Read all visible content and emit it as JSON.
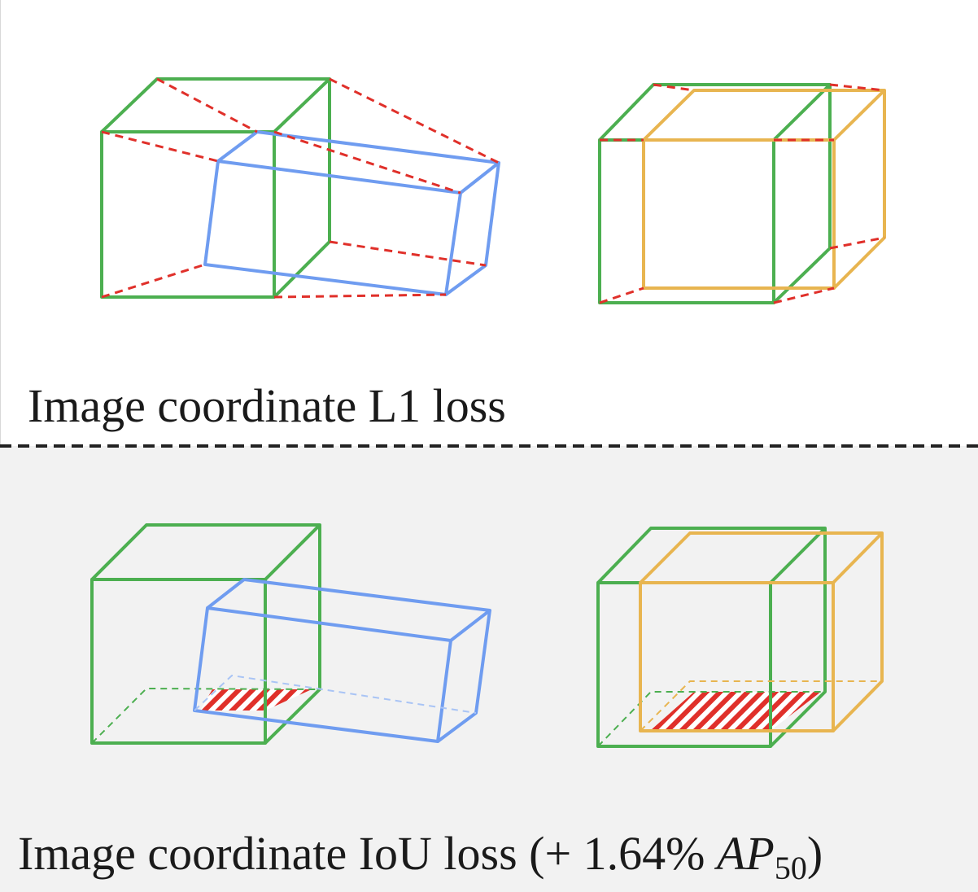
{
  "top_caption": "Image coordinate L1 loss",
  "bottom_caption_main": "Image coordinate IoU loss (+ 1.64% ",
  "bottom_caption_metric": "AP",
  "bottom_caption_subscript": "50",
  "bottom_caption_close": ")",
  "colors": {
    "ground_truth_box": "#4caf50",
    "prediction_box_rotated": "#6f9cf0",
    "prediction_box_shifted": "#e8b550",
    "l1_correspondence_lines": "#e0302a",
    "overlap_hatch": "#e0302a",
    "bottom_background": "#f2f2f2"
  }
}
